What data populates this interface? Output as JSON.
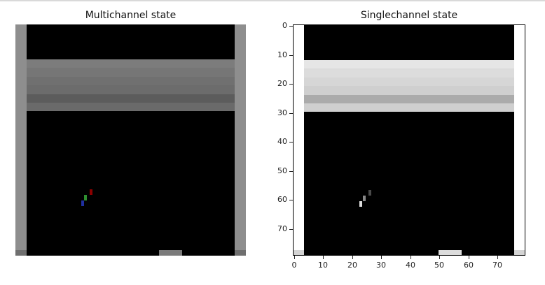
{
  "left_panel": {
    "title": "Multichannel state"
  },
  "right_panel": {
    "title": "Singlechannel state"
  },
  "axes": {
    "y_ticks": [
      "0",
      "10",
      "20",
      "30",
      "40",
      "50",
      "60",
      "70"
    ],
    "x_ticks": [
      "0",
      "10",
      "20",
      "30",
      "40",
      "50",
      "60",
      "70"
    ]
  },
  "colors": {
    "background": "#000000",
    "multichannel_wall": "#8e8e8e",
    "multichannel_bricks": "#6f6f6f",
    "multichannel_paddle": "#7a7a7a",
    "singlechannel_wall": "#ffffff",
    "singlechannel_bricks": "#d2d2d2",
    "singlechannel_paddle": "#dcdcdc",
    "ball_red": "#8b0000",
    "ball_green": "#2f8f2f",
    "ball_blue": "#1f2f9f"
  }
}
